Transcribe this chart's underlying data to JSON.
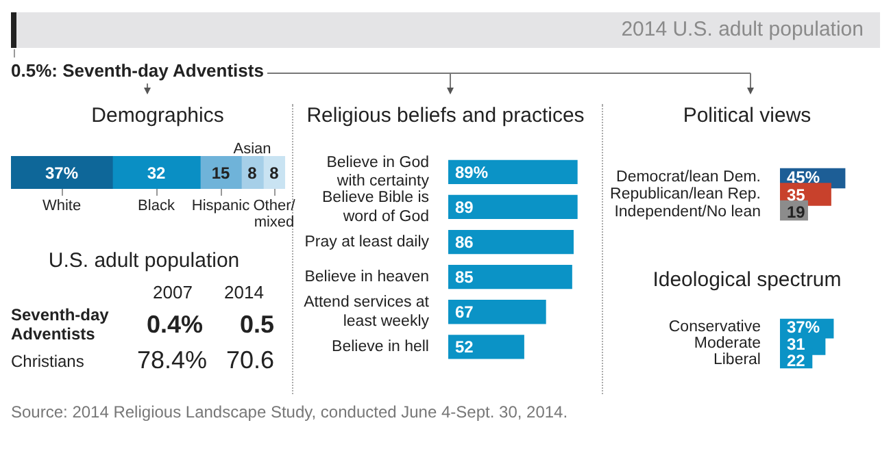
{
  "chart_data": [
    {
      "type": "other",
      "title": "0.5%: Seventh-day Adventists",
      "subtitle": "2014 U.S. adult population",
      "annotations": [
        "Source: 2014 Religious Landscape Study, conducted June 4-Sept. 30, 2014."
      ]
    },
    {
      "type": "bar",
      "title": "Demographics",
      "orientation": "horizontal",
      "stacked": true,
      "categories": [
        null
      ],
      "series": [
        {
          "name": "White",
          "color": "#0e6799",
          "values": [
            37
          ],
          "value_labels": [
            "37%"
          ]
        },
        {
          "name": "Black",
          "color": "#0a8fc4",
          "values": [
            32
          ],
          "value_labels": [
            "32"
          ]
        },
        {
          "name": "Hispanic",
          "color": "#6fb3d9",
          "values": [
            15
          ],
          "value_labels": [
            "15"
          ]
        },
        {
          "name": "Asian",
          "color": "#a6cfe8",
          "values": [
            8
          ],
          "value_labels": [
            "8"
          ]
        },
        {
          "name": "Other/mixed",
          "color": "#c9e3f2",
          "values": [
            8
          ],
          "value_labels": [
            "8"
          ]
        }
      ]
    },
    {
      "type": "other",
      "title": "U.S. adult population",
      "annotations": [
        "2007",
        "2014",
        "Seventh-day Adventists",
        "0.4%",
        "0.5",
        "Christians",
        "78.4%",
        "70.6"
      ]
    },
    {
      "type": "bar",
      "title": "Religious beliefs and practices",
      "orientation": "horizontal",
      "categories": [
        "Believe in God with certainty",
        "Believe Bible is word of God",
        "Pray at least daily",
        "Believe in heaven",
        "Attend services at least weekly",
        "Believe in hell"
      ],
      "values": [
        89,
        89,
        86,
        85,
        67,
        52
      ],
      "value_labels": [
        "89%",
        "89",
        "86",
        "85",
        "67",
        "52"
      ],
      "color": "#0b93c6"
    },
    {
      "type": "bar",
      "title": "Political views",
      "orientation": "horizontal",
      "categories": [
        "Democrat/lean Dem.",
        "Republican/lean Rep.",
        "Independent/No lean"
      ],
      "values": [
        45,
        35,
        19
      ],
      "value_labels": [
        "45%",
        "35",
        "19"
      ],
      "colors": [
        "#1d5e96",
        "#c8412c",
        "#8c8c8c"
      ]
    },
    {
      "type": "bar",
      "title": "Ideological spectrum",
      "orientation": "horizontal",
      "categories": [
        "Conservative",
        "Moderate",
        "Liberal"
      ],
      "values": [
        37,
        31,
        22
      ],
      "value_labels": [
        "37%",
        "31",
        "22"
      ],
      "color": "#0b93c6"
    }
  ]
}
